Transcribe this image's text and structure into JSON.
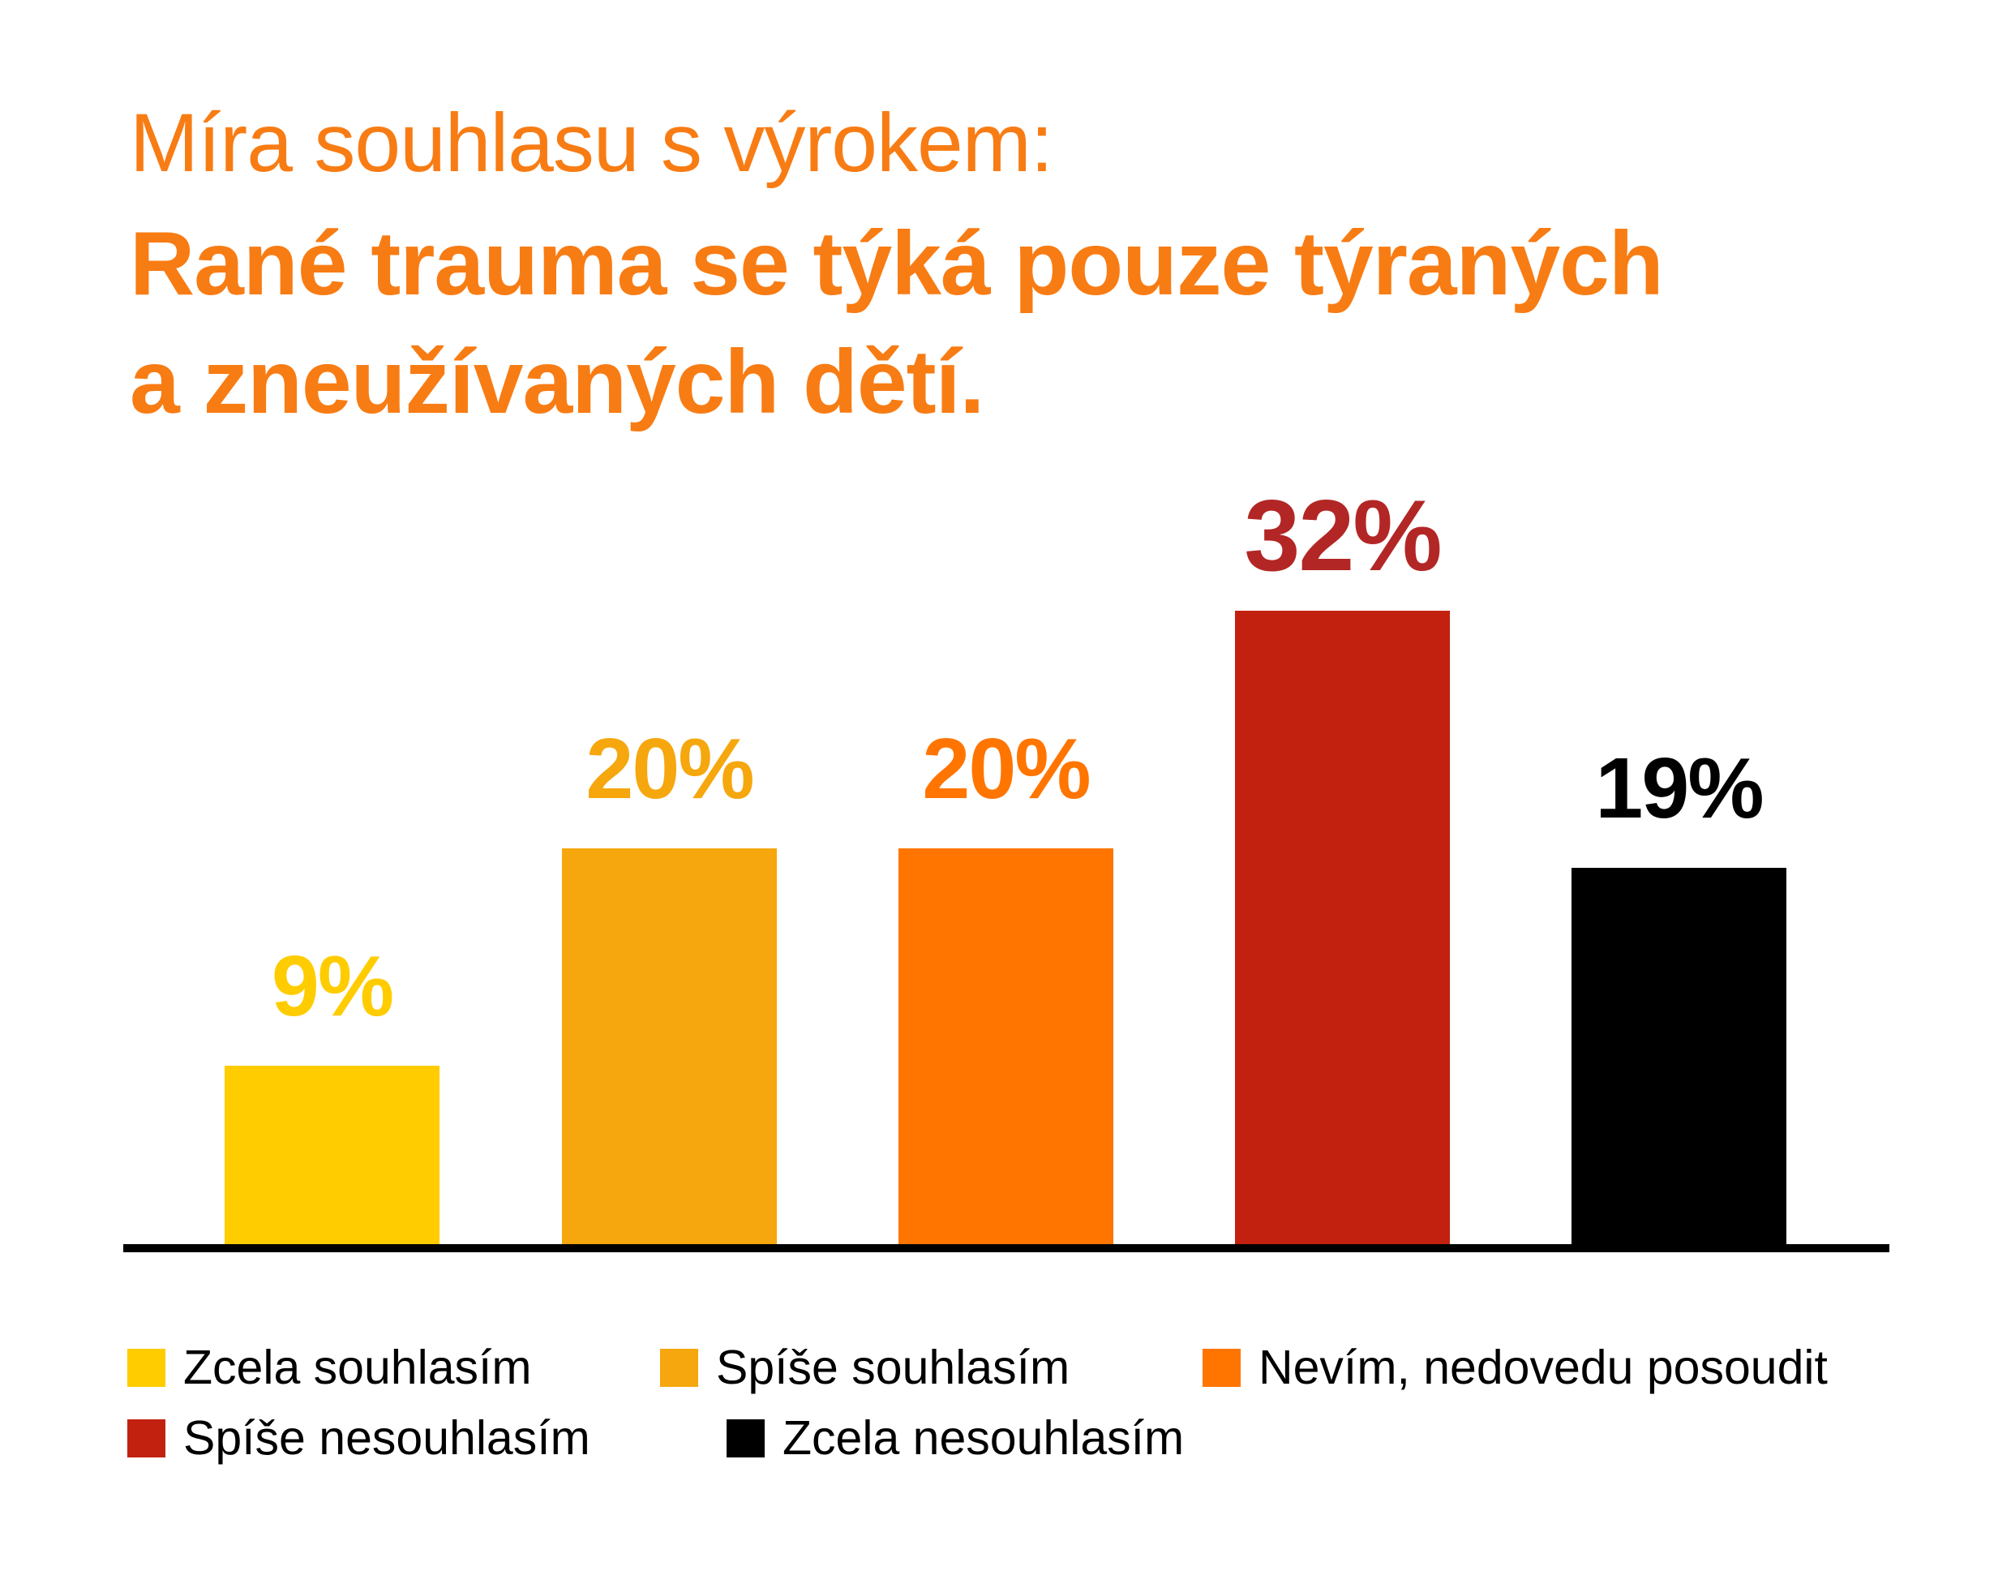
{
  "title": {
    "lead": "Míra souhlasu s výrokem:",
    "statement_line1": "Rané trauma se týká pouze týraných",
    "statement_line2": "a zneužívaných dětí."
  },
  "chart_data": {
    "type": "bar",
    "unit": "%",
    "title": "Míra souhlasu s výrokem: Rané trauma se týká pouze týraných a zneužívaných dětí.",
    "categories": [
      "Zcela souhlasím",
      "Spíše souhlasím",
      "Nevím, nedovedu posoudit",
      "Spíše nesouhlasím",
      "Zcela nesouhlasím"
    ],
    "values": [
      9,
      20,
      20,
      32,
      19
    ],
    "bars": [
      {
        "category": "Zcela souhlasím",
        "value": 9,
        "value_label": "9%",
        "color": "#FFCC00",
        "label_color": "#FFCC00"
      },
      {
        "category": "Spíše souhlasím",
        "value": 20,
        "value_label": "20%",
        "color": "#F5A70D",
        "label_color": "#F5A70D"
      },
      {
        "category": "Nevím, nedovedu posoudit",
        "value": 20,
        "value_label": "20%",
        "color": "#FF7500",
        "label_color": "#FF7500"
      },
      {
        "category": "Spíše nesouhlasím",
        "value": 32,
        "value_label": "32%",
        "color": "#C2210F",
        "label_color": "#B22725",
        "emphasized": true
      },
      {
        "category": "Zcela nesouhlasím",
        "value": 19,
        "value_label": "19%",
        "color": "#000000",
        "label_color": "#000000"
      }
    ],
    "ylim": [
      0,
      32
    ],
    "grid": false,
    "value_labels": "above bars",
    "legend_position": "bottom"
  },
  "legend": {
    "items": [
      {
        "label": "Zcela souhlasím",
        "color": "#FFCC00"
      },
      {
        "label": "Spíše souhlasím",
        "color": "#F5A70D"
      },
      {
        "label": "Nevím, nedovedu posoudit",
        "color": "#FF7500"
      },
      {
        "label": "Spíše nesouhlasím",
        "color": "#C2210F"
      },
      {
        "label": "Zcela nesouhlasím",
        "color": "#000000"
      }
    ]
  },
  "colors": {
    "background": "#FFFFFF",
    "title_text": "#F87C14",
    "axis": "#000000"
  }
}
